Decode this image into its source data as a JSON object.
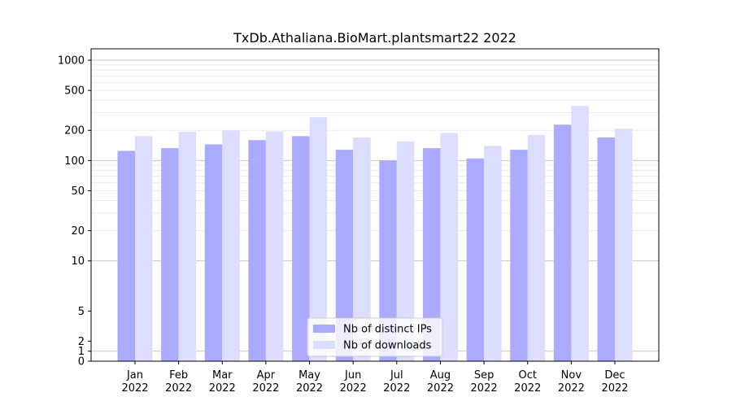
{
  "chart_data": {
    "type": "bar",
    "title": "TxDb.Athaliana.BioMart.plantsmart22 2022",
    "xlabel": "",
    "ylabel": "",
    "y_scale": "symlog",
    "ylim": [
      0,
      1300
    ],
    "y_ticks": [
      {
        "value": 0,
        "label": "0"
      },
      {
        "value": 1,
        "label": "1"
      },
      {
        "value": 2,
        "label": "2"
      },
      {
        "value": 5,
        "label": "5"
      },
      {
        "value": 10,
        "label": "10"
      },
      {
        "value": 20,
        "label": "20"
      },
      {
        "value": 50,
        "label": "50"
      },
      {
        "value": 100,
        "label": "100"
      },
      {
        "value": 200,
        "label": "200"
      },
      {
        "value": 500,
        "label": "500"
      },
      {
        "value": 1000,
        "label": "1000"
      }
    ],
    "grid": true,
    "legend_position": "bottom-center",
    "categories": [
      {
        "month": "Jan",
        "year": "2022"
      },
      {
        "month": "Feb",
        "year": "2022"
      },
      {
        "month": "Mar",
        "year": "2022"
      },
      {
        "month": "Apr",
        "year": "2022"
      },
      {
        "month": "May",
        "year": "2022"
      },
      {
        "month": "Jun",
        "year": "2022"
      },
      {
        "month": "Jul",
        "year": "2022"
      },
      {
        "month": "Aug",
        "year": "2022"
      },
      {
        "month": "Sep",
        "year": "2022"
      },
      {
        "month": "Oct",
        "year": "2022"
      },
      {
        "month": "Nov",
        "year": "2022"
      },
      {
        "month": "Dec",
        "year": "2022"
      }
    ],
    "series": [
      {
        "name": "Nb of distinct IPs",
        "color": "#aaaaff",
        "values": [
          125,
          133,
          145,
          160,
          175,
          128,
          100,
          133,
          105,
          128,
          228,
          170
        ]
      },
      {
        "name": "Nb of downloads",
        "color": "#ddddff",
        "values": [
          175,
          193,
          200,
          195,
          270,
          170,
          155,
          188,
          140,
          180,
          350,
          208
        ]
      }
    ]
  }
}
